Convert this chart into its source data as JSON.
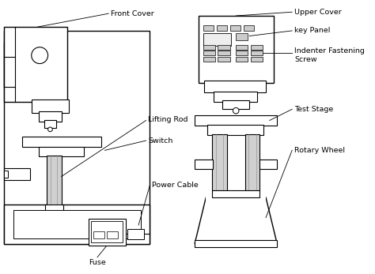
{
  "bg_color": "#ffffff",
  "line_color": "#000000",
  "labels": {
    "front_cover": "Front Cover",
    "lifting_rod": "Lifting Rod",
    "switch": "Switch",
    "power_cable": "Power Cable",
    "fuse": "Fuse",
    "upper_cover": "Upper Cover",
    "key_panel": "key Panel",
    "indenter_fastening_screw": "Indenter Fastening\nScrew",
    "test_stage": "Test Stage",
    "rotary_wheel": "Rotary Wheel"
  },
  "figsize": [
    4.74,
    3.47
  ],
  "dpi": 100
}
